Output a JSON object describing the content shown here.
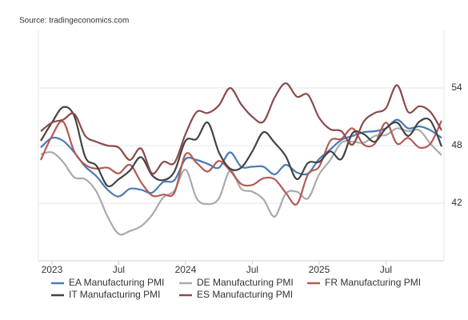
{
  "chart_data": {
    "type": "line",
    "source": "Source: tradingeconomics.com",
    "categories": [
      null,
      "2023",
      null,
      null,
      null,
      null,
      null,
      "Jul",
      null,
      null,
      null,
      null,
      null,
      "2024",
      null,
      null,
      null,
      null,
      null,
      "Jul",
      null,
      null,
      null,
      null,
      null,
      "2025",
      null,
      null,
      null,
      null,
      null,
      "Jul",
      null,
      null,
      null,
      null,
      null
    ],
    "series": [
      {
        "name": "EA Manufacturing PMI",
        "color": "#4a7ab8",
        "values": [
          47.8,
          48.8,
          48.5,
          47.3,
          45.8,
          44.8,
          43.4,
          42.7,
          43.5,
          43.4,
          43.1,
          44.2,
          44.4,
          46.6,
          46.5,
          46.1,
          45.7,
          47.3,
          45.8,
          45.8,
          45.8,
          45.0,
          46.0,
          45.2,
          45.1,
          46.6,
          47.6,
          48.6,
          49.0,
          49.4,
          49.5,
          49.8,
          50.7,
          49.8,
          50.0,
          49.6,
          48.8
        ]
      },
      {
        "name": "DE Manufacturing PMI",
        "color": "#aaaaaa",
        "values": [
          47.1,
          47.3,
          46.3,
          44.7,
          44.5,
          43.2,
          40.6,
          38.8,
          39.1,
          39.6,
          40.8,
          42.6,
          43.3,
          45.5,
          42.5,
          41.9,
          42.5,
          45.4,
          43.5,
          43.2,
          42.4,
          40.6,
          43.0,
          43.2,
          42.5,
          45.0,
          46.5,
          48.3,
          48.4,
          48.3,
          49.0,
          49.1,
          49.8,
          49.5,
          49.6,
          48.2,
          47.0
        ]
      },
      {
        "name": "FR Manufacturing PMI",
        "color": "#b35a55",
        "values": [
          46.5,
          49.0,
          50.5,
          47.4,
          46.0,
          45.6,
          45.7,
          45.1,
          46.0,
          44.2,
          42.8,
          42.9,
          43.1,
          47.1,
          46.2,
          45.3,
          46.4,
          45.4,
          44.0,
          43.9,
          44.6,
          44.5,
          43.1,
          41.9,
          45.0,
          45.8,
          48.5,
          48.7,
          49.8,
          48.1,
          48.2,
          50.4,
          48.2,
          48.8,
          47.8,
          48.2,
          50.6
        ]
      },
      {
        "name": "IT Manufacturing PMI",
        "color": "#444444",
        "values": [
          48.5,
          50.4,
          52.0,
          51.1,
          46.8,
          45.9,
          43.8,
          44.5,
          45.4,
          46.8,
          44.9,
          44.4,
          45.3,
          48.5,
          48.7,
          50.4,
          47.3,
          45.6,
          45.7,
          47.4,
          49.4,
          48.3,
          46.9,
          44.5,
          46.2,
          46.3,
          47.4,
          46.6,
          49.3,
          49.2,
          48.4,
          49.8,
          50.4,
          49.0,
          50.5,
          50.6,
          47.9
        ]
      },
      {
        "name": "ES Manufacturing PMI",
        "color": "#8b4a4a",
        "values": [
          49.5,
          50.4,
          50.7,
          51.3,
          49.0,
          48.4,
          48.0,
          47.8,
          46.5,
          47.7,
          45.1,
          46.3,
          46.2,
          49.2,
          51.5,
          51.4,
          52.2,
          54.0,
          52.3,
          51.0,
          50.5,
          53.0,
          54.5,
          53.1,
          53.3,
          50.9,
          49.7,
          49.5,
          48.1,
          50.5,
          51.4,
          51.9,
          54.3,
          51.5,
          52.1,
          51.5,
          49.6
        ]
      }
    ],
    "ylim": [
      36,
      60
    ],
    "yticks": [
      42,
      48,
      54
    ],
    "grid": true,
    "legend": "bottom"
  }
}
